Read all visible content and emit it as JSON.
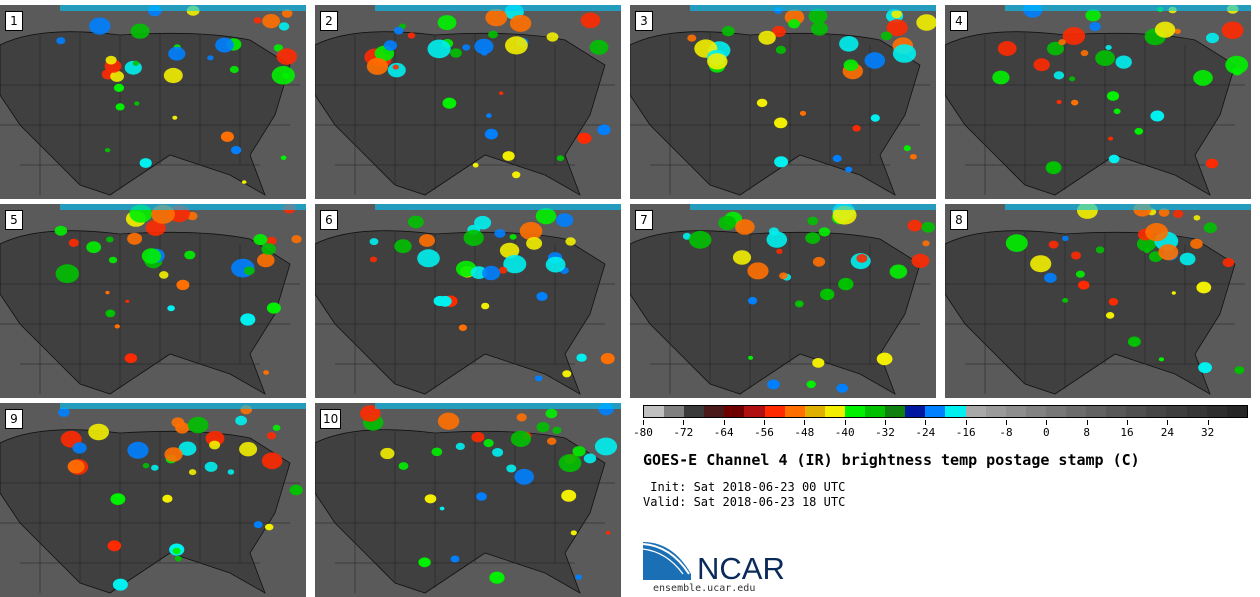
{
  "panels": [
    {
      "label": "1"
    },
    {
      "label": "2"
    },
    {
      "label": "3"
    },
    {
      "label": "4"
    },
    {
      "label": "5"
    },
    {
      "label": "6"
    },
    {
      "label": "7"
    },
    {
      "label": "8"
    },
    {
      "label": "9"
    },
    {
      "label": "10"
    }
  ],
  "colorbar": {
    "colors": [
      "#c0c0c0",
      "#7f7f7f",
      "#3a3a3a",
      "#4a1a1a",
      "#6e0000",
      "#b01010",
      "#ff2a00",
      "#ff7000",
      "#e0b000",
      "#f2ee00",
      "#00f000",
      "#00c000",
      "#108010",
      "#0018a0",
      "#0080ff",
      "#00f0f0",
      "#a8a8a8",
      "#9a9a9a",
      "#8e8e8e",
      "#828282",
      "#777777",
      "#6c6c6c",
      "#626262",
      "#585858",
      "#4f4f4f",
      "#464646",
      "#3e3e3e",
      "#363636",
      "#2e2e2e",
      "#262626"
    ],
    "ticks": [
      "-80",
      "-72",
      "-64",
      "-56",
      "-48",
      "-40",
      "-32",
      "-24",
      "-16",
      "-8",
      "0",
      "8",
      "16",
      "24",
      "32"
    ],
    "range": [
      -80,
      40
    ]
  },
  "title": "GOES-E Channel 4 (IR) brightness temp postage stamp (C)",
  "init": " Init: Sat 2018-06-23 00 UTC",
  "valid": "Valid: Sat 2018-06-23 18 UTC",
  "logo": {
    "text": "NCAR",
    "url": "ensemble.ucar.edu",
    "color": "#0a2a5a",
    "accent": "#1a6fb5"
  }
}
